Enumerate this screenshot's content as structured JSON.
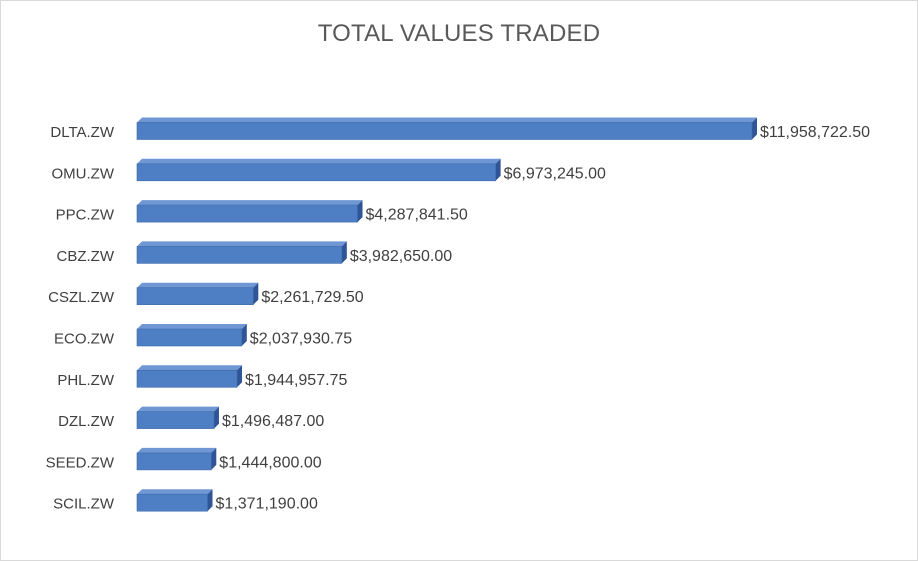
{
  "chart_data": {
    "type": "bar",
    "orientation": "horizontal",
    "style": "3d",
    "title": "TOTAL VALUES TRADED",
    "categories": [
      "DLTA.ZW",
      "OMU.ZW",
      "PPC.ZW",
      "CBZ.ZW",
      "CSZL.ZW",
      "ECO.ZW",
      "PHL.ZW",
      "DZL.ZW",
      "SEED.ZW",
      "SCIL.ZW"
    ],
    "values": [
      11958722.5,
      6973245.0,
      4287841.5,
      3982650.0,
      2261729.5,
      2037930.75,
      1944957.75,
      1496487.0,
      1444800.0,
      1371190.0
    ],
    "labels": [
      "$11,958,722.50",
      "$6,973,245.00",
      "$4,287,841.50",
      "$3,982,650.00",
      "$2,261,729.50",
      "$2,037,930.75",
      "$1,944,957.75",
      "$1,496,487.00",
      "$1,444,800.00",
      "$1,371,190.00"
    ],
    "xlim": [
      0,
      12000000
    ],
    "grid": false,
    "legend": "none",
    "colors": {
      "bar_front": "#4e7fc4",
      "bar_top": "#6f97d3",
      "bar_side": "#2f5597",
      "bar_edge": "#3d6aab",
      "text": "#404040",
      "title": "#595959"
    }
  }
}
